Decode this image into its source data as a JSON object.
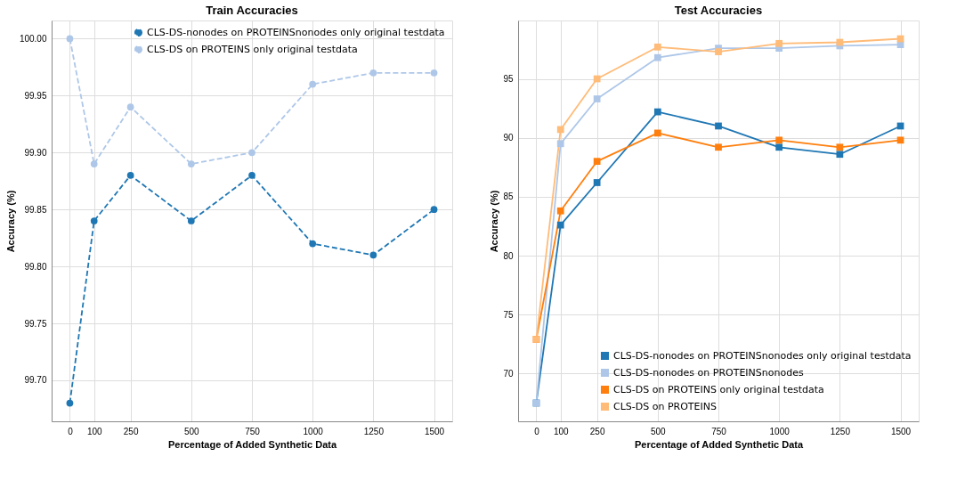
{
  "chart_data": [
    {
      "type": "line",
      "title": "Train Accuracies",
      "xlabel": "Percentage of Added Synthetic Data",
      "ylabel": "Accuracy (%)",
      "x": [
        0,
        100,
        250,
        500,
        750,
        1000,
        1250,
        1500
      ],
      "xlim": [
        -75,
        1575
      ],
      "xticks": [
        0,
        100,
        250,
        500,
        750,
        1000,
        1250,
        1500
      ],
      "ylim": [
        99.664,
        100.016
      ],
      "yticks": [
        {
          "value": 99.7,
          "label": "99.70"
        },
        99.75,
        {
          "value": 99.8,
          "label": "99.80"
        },
        99.85,
        {
          "value": 99.9,
          "label": "99.90"
        },
        99.95,
        {
          "value": 100.0,
          "label": "100.00"
        }
      ],
      "grid": true,
      "legend": "top right",
      "marker": "circle",
      "line_style": "dashed",
      "series": [
        {
          "name": "CLS-DS-nonodes on PROTEINSnonodes only original testdata",
          "color": "#1f77b4",
          "values": [
            99.68,
            99.84,
            99.88,
            99.84,
            99.88,
            99.82,
            99.81,
            99.85
          ]
        },
        {
          "name": "CLS-DS on PROTEINS only original testdata",
          "color": "#aec7e8",
          "values": [
            100.0,
            99.89,
            99.94,
            99.89,
            99.9,
            99.96,
            99.97,
            99.97
          ]
        }
      ]
    },
    {
      "type": "line",
      "title": "Test Accuracies",
      "xlabel": "Percentage of Added Synthetic Data",
      "ylabel": "Accuracy (%)",
      "x": [
        0,
        100,
        250,
        500,
        750,
        1000,
        1250,
        1500
      ],
      "xlim": [
        -75,
        1575
      ],
      "xticks": [
        0,
        100,
        250,
        500,
        750,
        1000,
        1250,
        1500
      ],
      "ylim": [
        65.95,
        99.95
      ],
      "yticks": [
        70,
        75,
        80,
        85,
        90,
        95
      ],
      "grid": true,
      "legend": "bottom right",
      "marker": "square",
      "line_style": "solid",
      "series": [
        {
          "name": "CLS-DS-nonodes on PROTEINSnonodes only original testdata",
          "color": "#1f77b4",
          "values": [
            67.5,
            82.6,
            86.2,
            92.2,
            91.0,
            89.2,
            88.6,
            91.0
          ]
        },
        {
          "name": "CLS-DS-nonodes on PROTEINSnonodes",
          "color": "#aec7e8",
          "values": [
            67.5,
            89.5,
            93.3,
            96.8,
            97.6,
            97.6,
            97.8,
            97.9
          ]
        },
        {
          "name": "CLS-DS on PROTEINS only original testdata",
          "color": "#ff7f0e",
          "values": [
            72.9,
            83.8,
            88.0,
            90.4,
            89.2,
            89.8,
            89.2,
            89.8
          ]
        },
        {
          "name": "CLS-DS on PROTEINS",
          "color": "#ffbb78",
          "values": [
            72.9,
            90.7,
            95.0,
            97.7,
            97.3,
            98.0,
            98.1,
            98.4
          ]
        }
      ]
    }
  ]
}
